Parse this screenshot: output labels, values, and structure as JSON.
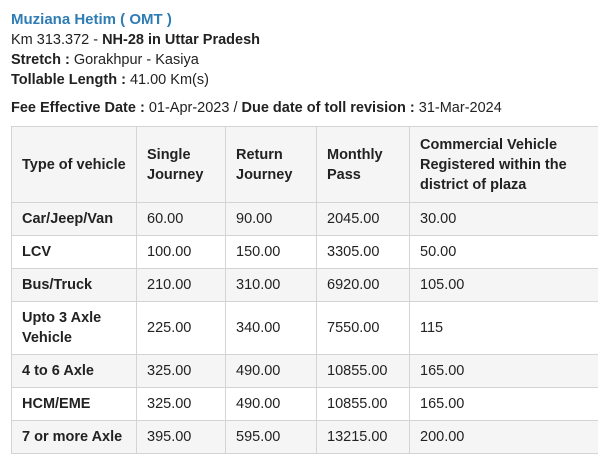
{
  "plaza": {
    "name": "Muziana Hetim ( OMT )",
    "km_prefix": "Km 313.372 - ",
    "highway": "NH-28 in Uttar Pradesh",
    "stretch_label": "Stretch : ",
    "stretch_value": "Gorakhpur - Kasiya",
    "length_label": "Tollable Length : ",
    "length_value": "41.00 Km(s)"
  },
  "fees": {
    "effective_label": "Fee Effective Date : ",
    "effective_value": "01-Apr-2023",
    "separator": " / ",
    "due_label": "Due date of toll revision : ",
    "due_value": "31-Mar-2024"
  },
  "table": {
    "headers": [
      "Type of vehicle",
      "Single Journey",
      "Return Journey",
      "Monthly Pass",
      "Commercial Vehicle Registered within the district of plaza"
    ],
    "rows": [
      [
        "Car/Jeep/Van",
        "60.00",
        "90.00",
        "2045.00",
        "30.00"
      ],
      [
        "LCV",
        "100.00",
        "150.00",
        "3305.00",
        "50.00"
      ],
      [
        "Bus/Truck",
        "210.00",
        "310.00",
        "6920.00",
        "105.00"
      ],
      [
        "Upto 3 Axle Vehicle",
        "225.00",
        "340.00",
        "7550.00",
        "115"
      ],
      [
        "4 to 6 Axle",
        "325.00",
        "490.00",
        "10855.00",
        "165.00"
      ],
      [
        "HCM/EME",
        "325.00",
        "490.00",
        "10855.00",
        "165.00"
      ],
      [
        "7 or more Axle",
        "395.00",
        "595.00",
        "13215.00",
        "200.00"
      ]
    ]
  }
}
